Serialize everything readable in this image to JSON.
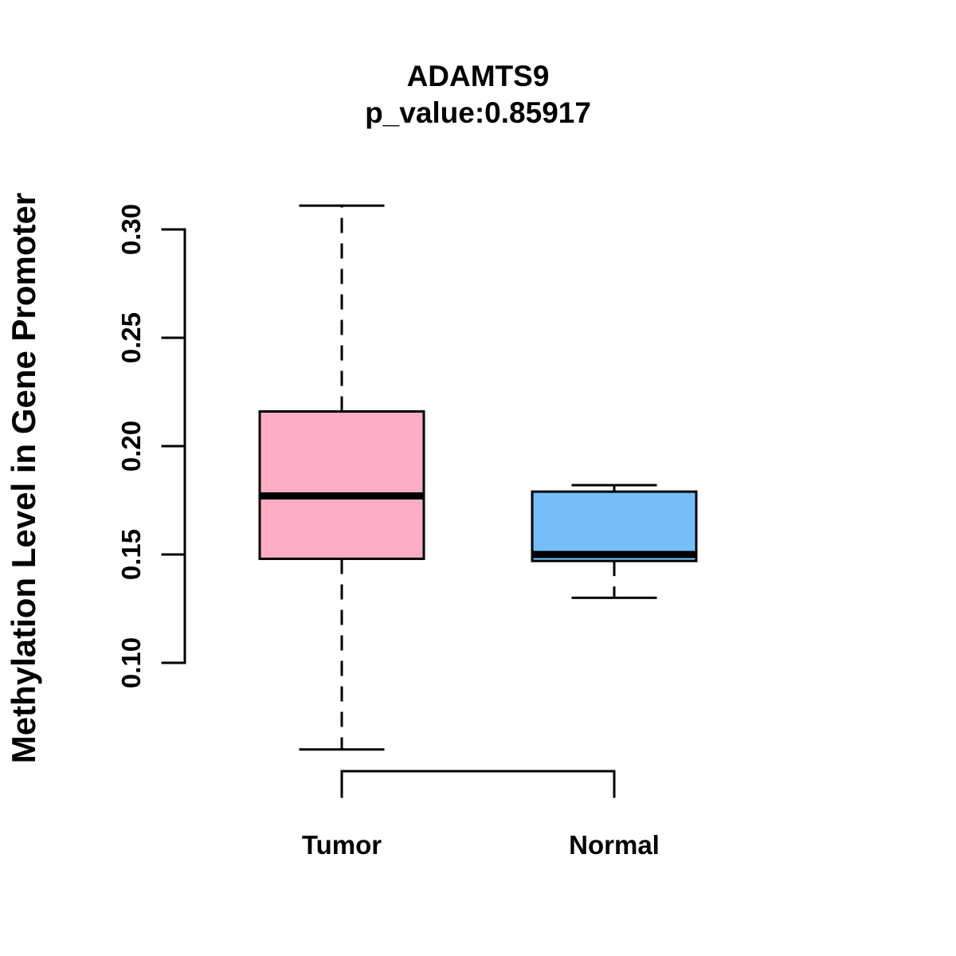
{
  "chart_data": {
    "type": "boxplot",
    "title": "ADAMTS9",
    "subtitle": "p_value:0.85917",
    "ylabel": "Methylation Level in Gene Promoter",
    "xlabel": "",
    "categories": [
      "Tumor",
      "Normal"
    ],
    "series": [
      {
        "name": "Tumor",
        "lower_whisker": 0.06,
        "q1": 0.148,
        "median": 0.177,
        "q3": 0.216,
        "upper_whisker": 0.311,
        "color": "#FBAEC3"
      },
      {
        "name": "Normal",
        "lower_whisker": 0.13,
        "q1": 0.147,
        "median": 0.15,
        "q3": 0.179,
        "upper_whisker": 0.182,
        "color": "#75BFF8"
      }
    ],
    "yticks": [
      0.3,
      0.25,
      0.2,
      0.15,
      0.1
    ],
    "ytick_labels": [
      "0.30",
      "0.25",
      "0.20",
      "0.15",
      "0.10"
    ],
    "ylim_axis": [
      0.1,
      0.3
    ],
    "grid": false,
    "legend": "none"
  },
  "colors": {
    "stroke": "#000000",
    "background": "#ffffff",
    "tumor_fill": "#FBAEC3",
    "normal_fill": "#75BFF8"
  }
}
